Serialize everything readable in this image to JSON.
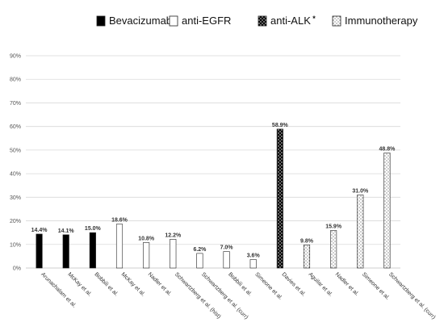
{
  "colors": {
    "bevacizumab": "#000000",
    "anti_egfr": "#ffffff",
    "anti_alk": "#000000",
    "immunotherapy": "#ffffff",
    "bar_stroke": "#222222",
    "grid": "#d9d9d9",
    "axis": "#bfbfbf"
  },
  "chart_data": {
    "type": "bar",
    "title": "",
    "xlabel": "",
    "ylabel": "",
    "ylim": [
      0,
      90
    ],
    "y_ticks": [
      "0%",
      "10%",
      "20%",
      "30%",
      "40%",
      "50%",
      "60%",
      "70%",
      "80%",
      "90%"
    ],
    "grid": true,
    "legend_position": "top",
    "legend": [
      {
        "label": "Bevacizumab",
        "group": "bevacizumab",
        "pattern": "solid-black"
      },
      {
        "label": "anti-EGFR",
        "group": "anti_egfr",
        "pattern": "white"
      },
      {
        "label": "anti-ALK",
        "marker": "*",
        "group": "anti_alk",
        "pattern": "black-dotted"
      },
      {
        "label": "Immunotherapy",
        "group": "immunotherapy",
        "pattern": "white-dotted"
      }
    ],
    "bars": [
      {
        "category": "Arunachalam et al.",
        "value": 14.4,
        "label": "14.4%",
        "group": "bevacizumab"
      },
      {
        "category": "McKay et al.",
        "value": 14.1,
        "label": "14.1%",
        "group": "bevacizumab"
      },
      {
        "category": "Bobbili et al.",
        "value": 15.0,
        "label": "15.0%",
        "group": "bevacizumab"
      },
      {
        "category": "McKay et al.",
        "value": 18.6,
        "label": "18.6%",
        "group": "anti_egfr"
      },
      {
        "category": "Nadler et al.",
        "value": 10.8,
        "label": "10.8%",
        "group": "anti_egfr"
      },
      {
        "category": "Schwartzberg et al. (hist)",
        "value": 12.2,
        "label": "12.2%",
        "group": "anti_egfr"
      },
      {
        "category": "Schwartzberg et al. (curr)",
        "value": 6.2,
        "label": "6.2%",
        "group": "anti_egfr"
      },
      {
        "category": "Bobbili et al.",
        "value": 7.0,
        "label": "7.0%",
        "group": "anti_egfr"
      },
      {
        "category": "Simeone et al.",
        "value": 3.6,
        "label": "3.6%",
        "group": "anti_egfr"
      },
      {
        "category": "Davies et al.",
        "value": 58.9,
        "label": "58.9%",
        "group": "anti_alk"
      },
      {
        "category": "Aguilar et al.",
        "value": 9.8,
        "label": "9.8%",
        "group": "immunotherapy"
      },
      {
        "category": "Nadler et al.",
        "value": 15.9,
        "label": "15.9%",
        "group": "immunotherapy"
      },
      {
        "category": "Simeone et al.",
        "value": 31.0,
        "label": "31.0%",
        "group": "immunotherapy"
      },
      {
        "category": "Schwartzberg et al. (curr)",
        "value": 48.8,
        "label": "48.8%",
        "group": "immunotherapy"
      }
    ]
  }
}
